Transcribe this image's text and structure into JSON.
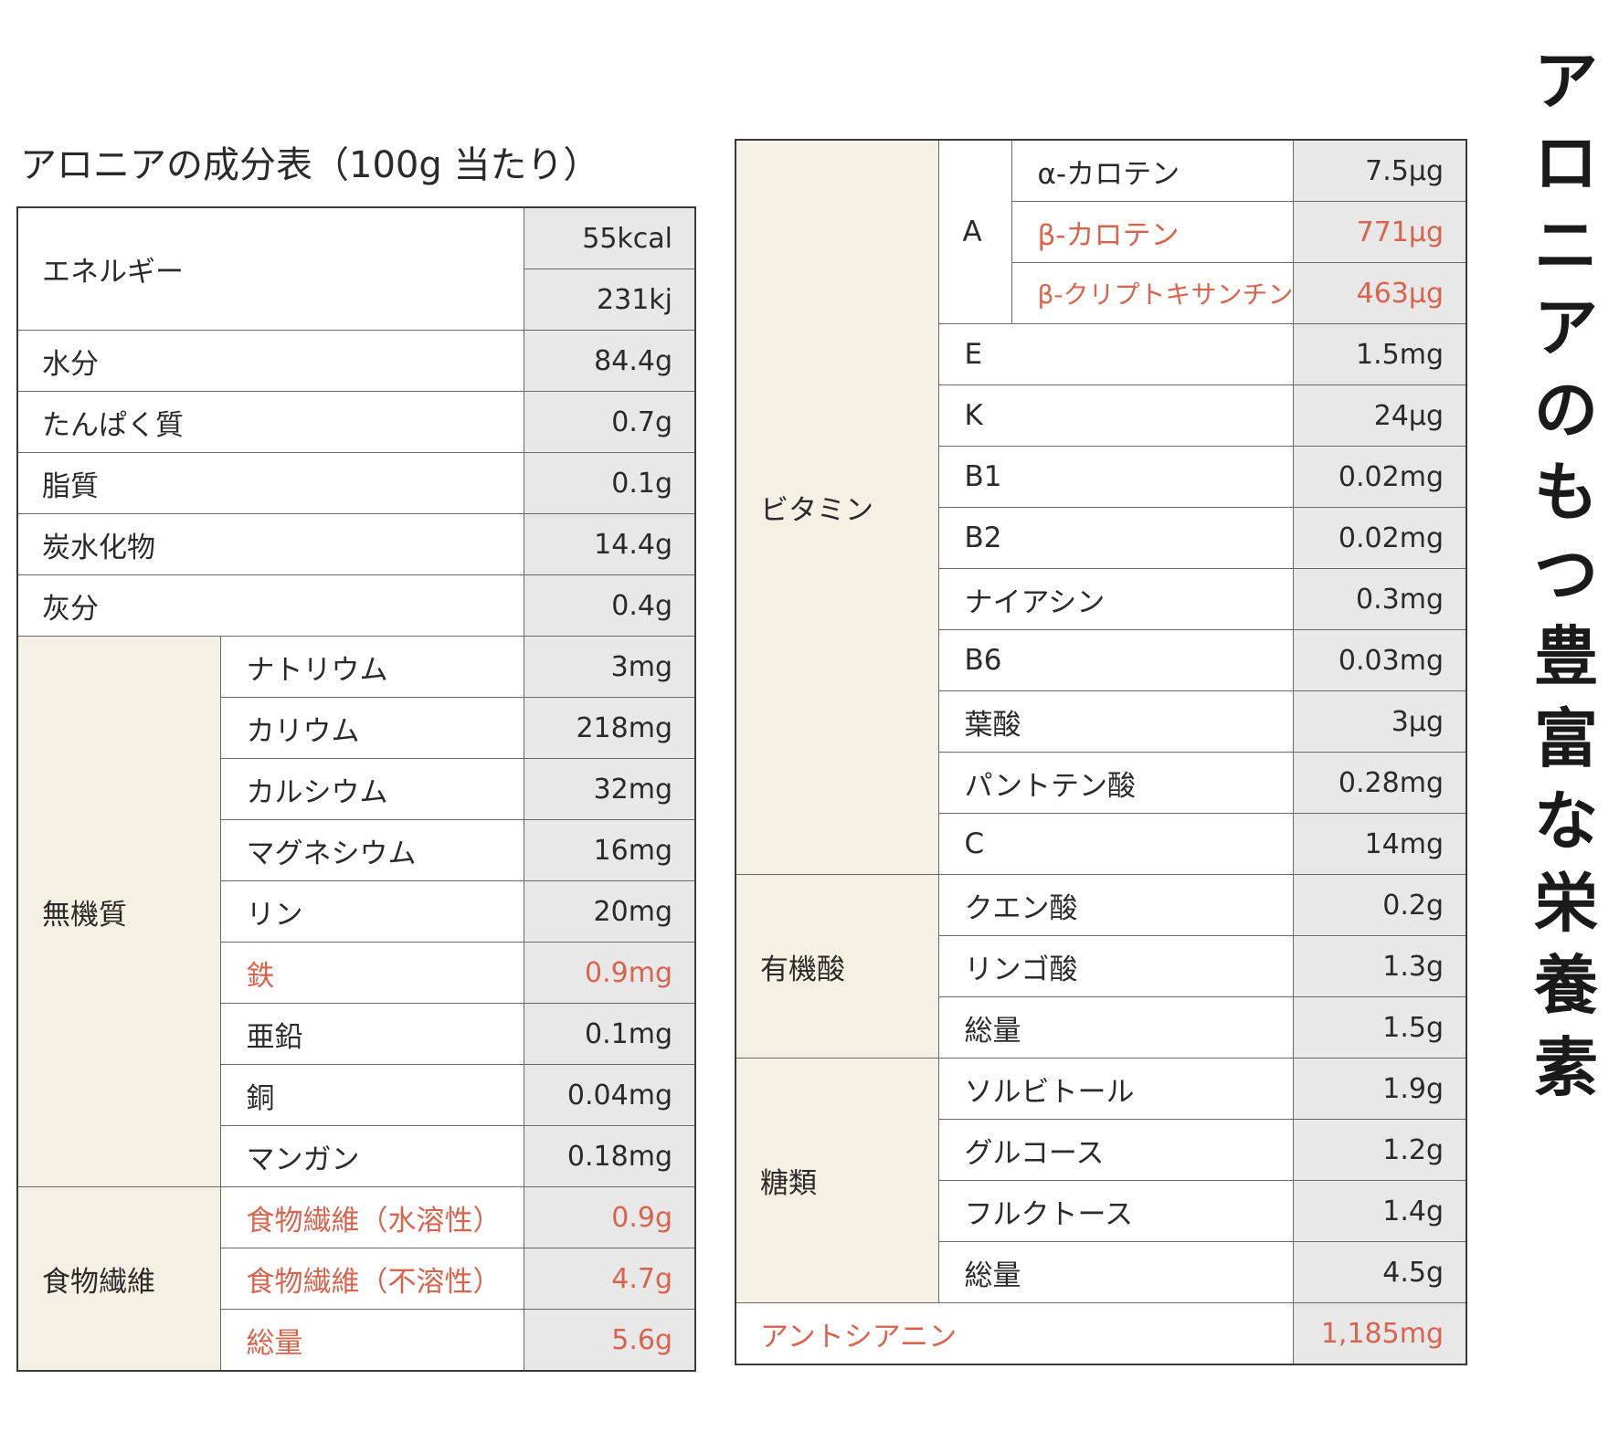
{
  "title": "アロニアの成分表（100g 当たり）",
  "side_heading": [
    "ア",
    "ロ",
    "ニ",
    "ア",
    "の",
    "も",
    "つ",
    "豊",
    "富",
    "な",
    "栄",
    "養",
    "素"
  ],
  "colors": {
    "highlight_red": "#d9644e",
    "category_bg": "#f5f0e4",
    "value_bg": "#e8e8e8"
  },
  "left_table": {
    "energy": {
      "label": "エネルギー",
      "kcal": "55kcal",
      "kj": "231kj"
    },
    "rows": [
      {
        "label": "水分",
        "value": "84.4g"
      },
      {
        "label": "たんぱく質",
        "value": "0.7g"
      },
      {
        "label": "脂質",
        "value": "0.1g"
      },
      {
        "label": "炭水化物",
        "value": "14.4g"
      },
      {
        "label": "灰分",
        "value": "0.4g"
      }
    ],
    "minerals": {
      "label": "無機質",
      "items": [
        {
          "label": "ナトリウム",
          "value": "3mg"
        },
        {
          "label": "カリウム",
          "value": "218mg"
        },
        {
          "label": "カルシウム",
          "value": "32mg"
        },
        {
          "label": "マグネシウム",
          "value": "16mg"
        },
        {
          "label": "リン",
          "value": "20mg"
        },
        {
          "label": "鉄",
          "value": "0.9mg"
        },
        {
          "label": "亜鉛",
          "value": "0.1mg"
        },
        {
          "label": "銅",
          "value": "0.04mg"
        },
        {
          "label": "マンガン",
          "value": "0.18mg"
        }
      ]
    },
    "fiber": {
      "label": "食物繊維",
      "items": [
        {
          "label": "食物繊維（水溶性）",
          "value": "0.9g"
        },
        {
          "label": "食物繊維（不溶性）",
          "value": "4.7g"
        },
        {
          "label": "総量",
          "value": "5.6g"
        }
      ]
    }
  },
  "right_table": {
    "vitamins": {
      "label": "ビタミン",
      "a": {
        "label": "A",
        "items": [
          {
            "label": "α-カロテン",
            "value": "7.5μg"
          },
          {
            "label": "β-カロテン",
            "value": "771μg"
          },
          {
            "label": "β-クリプトキサンチン",
            "value": "463μg"
          }
        ]
      },
      "items": [
        {
          "label": "E",
          "value": "1.5mg"
        },
        {
          "label": "K",
          "value": "24μg"
        },
        {
          "label": "B1",
          "value": "0.02mg"
        },
        {
          "label": "B2",
          "value": "0.02mg"
        },
        {
          "label": "ナイアシン",
          "value": "0.3mg"
        },
        {
          "label": "B6",
          "value": "0.03mg"
        },
        {
          "label": "葉酸",
          "value": "3μg"
        },
        {
          "label": "パントテン酸",
          "value": "0.28mg"
        },
        {
          "label": "C",
          "value": "14mg"
        }
      ]
    },
    "organic_acids": {
      "label": "有機酸",
      "items": [
        {
          "label": "クエン酸",
          "value": "0.2g"
        },
        {
          "label": "リンゴ酸",
          "value": "1.3g"
        },
        {
          "label": "総量",
          "value": "1.5g"
        }
      ]
    },
    "sugars": {
      "label": "糖類",
      "items": [
        {
          "label": "ソルビトール",
          "value": "1.9g"
        },
        {
          "label": "グルコース",
          "value": "1.2g"
        },
        {
          "label": "フルクトース",
          "value": "1.4g"
        },
        {
          "label": "総量",
          "value": "4.5g"
        }
      ]
    },
    "anthocyanin": {
      "label": "アントシアニン",
      "value": "1,185mg"
    }
  }
}
